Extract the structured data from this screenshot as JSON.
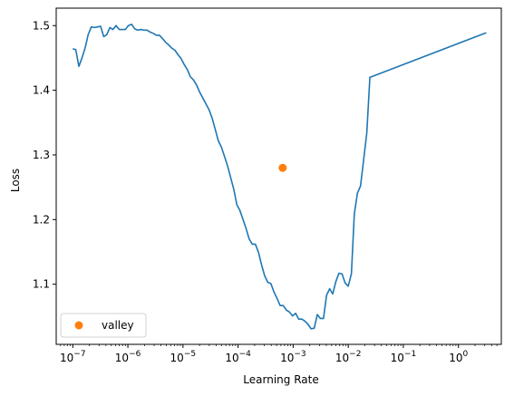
{
  "chart_data": {
    "type": "line",
    "xlabel": "Learning Rate",
    "ylabel": "Loss",
    "x_scale": "log",
    "xlim": [
      5e-08,
      6
    ],
    "ylim": [
      1.007,
      1.527
    ],
    "x_ticks": [
      {
        "value": 1e-07,
        "base": "10",
        "exp": "−7"
      },
      {
        "value": 1e-06,
        "base": "10",
        "exp": "−6"
      },
      {
        "value": 1e-05,
        "base": "10",
        "exp": "−5"
      },
      {
        "value": 0.0001,
        "base": "10",
        "exp": "−4"
      },
      {
        "value": 0.001,
        "base": "10",
        "exp": "−3"
      },
      {
        "value": 0.01,
        "base": "10",
        "exp": "−2"
      },
      {
        "value": 0.1,
        "base": "10",
        "exp": "−1"
      },
      {
        "value": 1,
        "base": "10",
        "exp": "0"
      }
    ],
    "y_ticks": [
      {
        "value": 1.1,
        "label": "1.1"
      },
      {
        "value": 1.2,
        "label": "1.2"
      },
      {
        "value": 1.3,
        "label": "1.3"
      },
      {
        "value": 1.4,
        "label": "1.4"
      },
      {
        "value": 1.5,
        "label": "1.5"
      }
    ],
    "grid": false,
    "legend": {
      "placement": "lower-left"
    },
    "series": [
      {
        "kind": "line",
        "color": "#1f77b4",
        "points": [
          [
            1e-07,
            1.464
          ],
          [
            1.13e-07,
            1.463
          ],
          [
            1.29e-07,
            1.437
          ],
          [
            1.47e-07,
            1.45
          ],
          [
            1.68e-07,
            1.466
          ],
          [
            1.9e-07,
            1.486
          ],
          [
            2.17e-07,
            1.498
          ],
          [
            2.47e-07,
            1.497
          ],
          [
            2.81e-07,
            1.498
          ],
          [
            3.2e-07,
            1.499
          ],
          [
            3.64e-07,
            1.483
          ],
          [
            4.14e-07,
            1.486
          ],
          [
            4.71e-07,
            1.497
          ],
          [
            5.36e-07,
            1.494
          ],
          [
            6.1e-07,
            1.5
          ],
          [
            6.95e-07,
            1.494
          ],
          [
            7.91e-07,
            1.494
          ],
          [
            9e-07,
            1.494
          ],
          [
            1.02e-06,
            1.5
          ],
          [
            1.17e-06,
            1.502
          ],
          [
            1.33e-06,
            1.495
          ],
          [
            1.51e-06,
            1.493
          ],
          [
            1.72e-06,
            1.494
          ],
          [
            1.96e-06,
            1.493
          ],
          [
            2.23e-06,
            1.493
          ],
          [
            2.54e-06,
            1.49
          ],
          [
            2.89e-06,
            1.488
          ],
          [
            3.29e-06,
            1.485
          ],
          [
            3.74e-06,
            1.485
          ],
          [
            4.26e-06,
            1.48
          ],
          [
            4.85e-06,
            1.474
          ],
          [
            5.52e-06,
            1.47
          ],
          [
            6.28e-06,
            1.465
          ],
          [
            7.14e-06,
            1.462
          ],
          [
            8.13e-06,
            1.455
          ],
          [
            9.25e-06,
            1.449
          ],
          [
            1.05e-05,
            1.44
          ],
          [
            1.2e-05,
            1.432
          ],
          [
            1.36e-05,
            1.421
          ],
          [
            1.55e-05,
            1.416
          ],
          [
            1.77e-05,
            1.408
          ],
          [
            2.01e-05,
            1.397
          ],
          [
            2.29e-05,
            1.388
          ],
          [
            2.61e-05,
            1.379
          ],
          [
            2.97e-05,
            1.37
          ],
          [
            3.38e-05,
            1.357
          ],
          [
            3.84e-05,
            1.34
          ],
          [
            4.37e-05,
            1.322
          ],
          [
            4.98e-05,
            1.312
          ],
          [
            5.66e-05,
            1.298
          ],
          [
            6.45e-05,
            1.283
          ],
          [
            7.34e-05,
            1.265
          ],
          [
            8.35e-05,
            1.247
          ],
          [
            9.5e-05,
            1.223
          ],
          [
            0.000108,
            1.214
          ],
          [
            0.000123,
            1.2
          ],
          [
            0.00014,
            1.186
          ],
          [
            0.000159,
            1.17
          ],
          [
            0.000181,
            1.162
          ],
          [
            0.000206,
            1.162
          ],
          [
            0.000235,
            1.149
          ],
          [
            0.000267,
            1.13
          ],
          [
            0.000304,
            1.113
          ],
          [
            0.000346,
            1.103
          ],
          [
            0.000394,
            1.101
          ],
          [
            0.000448,
            1.088
          ],
          [
            0.00051,
            1.078
          ],
          [
            0.00058,
            1.067
          ],
          [
            0.000661,
            1.067
          ],
          [
            0.000752,
            1.06
          ],
          [
            0.000856,
            1.057
          ],
          [
            0.000974,
            1.051
          ],
          [
            0.00111,
            1.055
          ],
          [
            0.00126,
            1.046
          ],
          [
            0.00144,
            1.046
          ],
          [
            0.00163,
            1.043
          ],
          [
            0.00186,
            1.038
          ],
          [
            0.00212,
            1.031
          ],
          [
            0.00241,
            1.032
          ],
          [
            0.00274,
            1.053
          ],
          [
            0.00312,
            1.047
          ],
          [
            0.00355,
            1.047
          ],
          [
            0.00404,
            1.083
          ],
          [
            0.0046,
            1.093
          ],
          [
            0.00523,
            1.085
          ],
          [
            0.00595,
            1.104
          ],
          [
            0.00677,
            1.117
          ],
          [
            0.00771,
            1.116
          ],
          [
            0.00877,
            1.102
          ],
          [
            0.00998,
            1.097
          ],
          [
            0.0114,
            1.116
          ],
          [
            0.0129,
            1.209
          ],
          [
            0.0147,
            1.241
          ],
          [
            0.0167,
            1.252
          ],
          [
            0.019,
            1.292
          ],
          [
            0.0217,
            1.334
          ],
          [
            0.0247,
            1.42
          ],
          [
            3.2,
            1.489
          ]
        ]
      },
      {
        "kind": "marker",
        "name": "valley",
        "color": "#ff7f0e",
        "points": [
          [
            0.000645,
            1.28
          ]
        ]
      }
    ]
  }
}
